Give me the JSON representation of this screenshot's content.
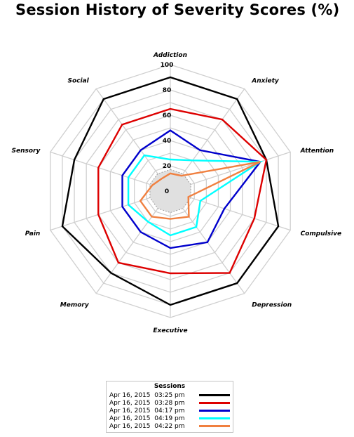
{
  "chart_data": {
    "type": "radar",
    "title": "Session History of Severity Scores (%)",
    "axes": [
      "Addiction",
      "Anxiety",
      "Attention",
      "Compulsive",
      "Depression",
      "Executive",
      "Memory",
      "Pain",
      "Sensory",
      "Social"
    ],
    "rlim": [
      0,
      100
    ],
    "ticks": [
      "0",
      "20",
      "40",
      "60",
      "80",
      "100"
    ],
    "grid": true,
    "legend": {
      "title": "Sessions",
      "placement": "bottom-center"
    },
    "series": [
      {
        "name": "Apr 16, 2015  03:25 pm",
        "color": "#000000",
        "values": [
          90,
          90,
          80,
          90,
          90,
          90,
          80,
          90,
          80,
          90
        ]
      },
      {
        "name": "Apr 16, 2015  03:28 pm",
        "color": "#dd0000",
        "values": [
          65,
          70,
          80,
          70,
          80,
          65,
          70,
          60,
          60,
          65
        ]
      },
      {
        "name": "Apr 16, 2015  04:17 pm",
        "color": "#0000cc",
        "values": [
          48,
          40,
          75,
          45,
          50,
          45,
          40,
          40,
          40,
          40
        ]
      },
      {
        "name": "Apr 16, 2015  04:19 pm",
        "color": "#00ffff",
        "values": [
          25,
          30,
          75,
          25,
          35,
          35,
          30,
          35,
          35,
          35
        ]
      },
      {
        "name": "Apr 16, 2015  04:22 pm",
        "color": "#f08040",
        "values": [
          14,
          15,
          75,
          15,
          25,
          22,
          25,
          25,
          15,
          12
        ]
      }
    ],
    "baseline": {
      "values": [
        17,
        17,
        17,
        17,
        17,
        17,
        17,
        17,
        17,
        17
      ],
      "fill": "#e0e0e0"
    }
  }
}
